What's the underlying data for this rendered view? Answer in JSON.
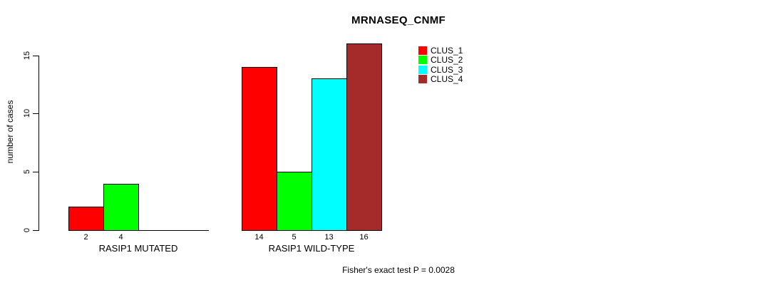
{
  "title": "MRNASEQ_CNMF",
  "y_axis": {
    "label": "number of cases",
    "ticks": [
      "0",
      "5",
      "10",
      "15"
    ]
  },
  "footer": "Fisher's exact test P = 0.0028",
  "legend": {
    "items": [
      {
        "label": "CLUS_1",
        "color": "#ff0000"
      },
      {
        "label": "CLUS_2",
        "color": "#00ff00"
      },
      {
        "label": "CLUS_3",
        "color": "#00ffff"
      },
      {
        "label": "CLUS_4",
        "color": "#a52a2a"
      }
    ]
  },
  "chart_data": {
    "type": "bar",
    "title": "MRNASEQ_CNMF",
    "ylabel": "number of cases",
    "ylim": [
      0,
      15
    ],
    "yticks": [
      0,
      5,
      10,
      15
    ],
    "grid": false,
    "legend_position": "inside-top-right",
    "categories": [
      "RASIP1 MUTATED",
      "RASIP1 WILD-TYPE"
    ],
    "series": [
      {
        "name": "CLUS_1",
        "color": "#ff0000",
        "values": [
          2,
          14
        ]
      },
      {
        "name": "CLUS_2",
        "color": "#00ff00",
        "values": [
          4,
          5
        ]
      },
      {
        "name": "CLUS_3",
        "color": "#00ffff",
        "values": [
          0,
          13
        ]
      },
      {
        "name": "CLUS_4",
        "color": "#a52a2a",
        "values": [
          0,
          16
        ]
      }
    ],
    "bar_value_labels_shown_for_nonzero": true,
    "visible_bar_value_labels": [
      "2",
      "4",
      "14",
      "5",
      "13",
      "16"
    ],
    "annotation": "Fisher's exact test P = 0.0028"
  }
}
